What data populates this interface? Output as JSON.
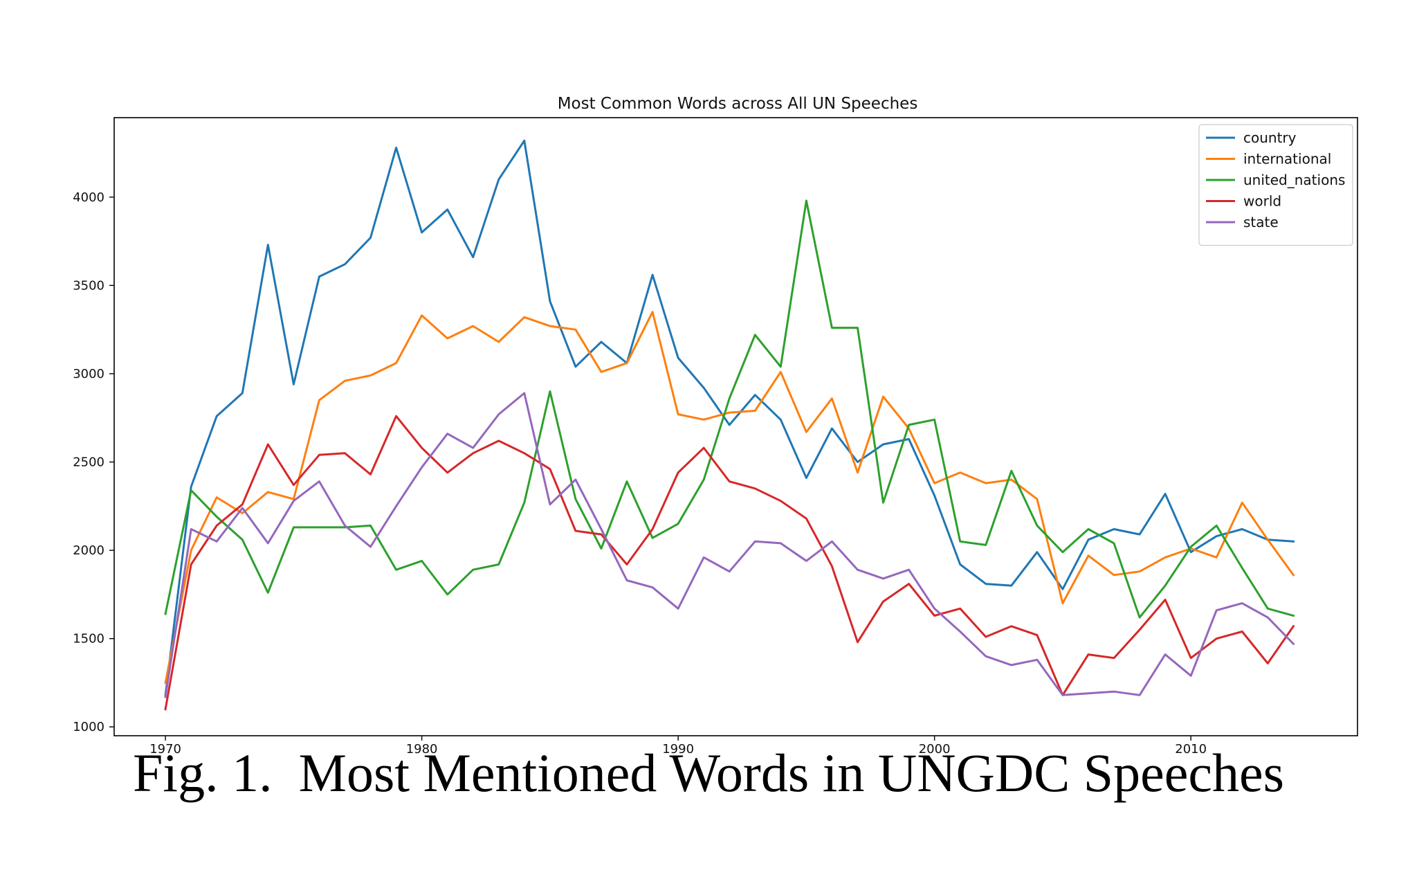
{
  "caption": {
    "prefix": "Fig. 1.",
    "text": "Most Mentioned Words in UNGDC Speeches"
  },
  "chart_data": {
    "type": "line",
    "title": "Most Common Words across All UN Speeches",
    "xlabel": "",
    "ylabel": "",
    "xlim": [
      1968,
      2016.5
    ],
    "ylim": [
      950,
      4450
    ],
    "xticks": [
      1970,
      1980,
      1990,
      2000,
      2010
    ],
    "yticks": [
      1000,
      1500,
      2000,
      2500,
      3000,
      3500,
      4000
    ],
    "grid": false,
    "legend_position": "top-right",
    "x": [
      1970,
      1971,
      1972,
      1973,
      1974,
      1975,
      1976,
      1977,
      1978,
      1979,
      1980,
      1981,
      1982,
      1983,
      1984,
      1985,
      1986,
      1987,
      1988,
      1989,
      1990,
      1991,
      1992,
      1993,
      1994,
      1995,
      1996,
      1997,
      1998,
      1999,
      2000,
      2001,
      2002,
      2003,
      2004,
      2005,
      2006,
      2007,
      2008,
      2009,
      2010,
      2011,
      2012,
      2013,
      2014
    ],
    "series": [
      {
        "name": "country",
        "color": "#1f77b4",
        "values": [
          1180,
          2360,
          2760,
          2890,
          3730,
          2940,
          3550,
          3620,
          3770,
          4280,
          3800,
          3930,
          3660,
          4100,
          4320,
          3410,
          3040,
          3180,
          3060,
          3560,
          3090,
          2920,
          2710,
          2880,
          2740,
          2410,
          2690,
          2500,
          2600,
          2630,
          2310,
          1920,
          1810,
          1800,
          1990,
          1780,
          2060,
          2120,
          2090,
          2320,
          1990,
          2080,
          2120,
          2060,
          2050
        ]
      },
      {
        "name": "international",
        "color": "#ff7f0e",
        "values": [
          1250,
          2000,
          2300,
          2210,
          2330,
          2290,
          2850,
          2960,
          2990,
          3060,
          3330,
          3200,
          3270,
          3180,
          3320,
          3270,
          3250,
          3010,
          3060,
          3350,
          2770,
          2740,
          2780,
          2790,
          3010,
          2670,
          2860,
          2440,
          2870,
          2690,
          2380,
          2440,
          2380,
          2400,
          2290,
          1700,
          1970,
          1860,
          1880,
          1960,
          2010,
          1960,
          2270,
          2060,
          1860
        ]
      },
      {
        "name": "united_nations",
        "color": "#2ca02c",
        "values": [
          1640,
          2340,
          2190,
          2060,
          1760,
          2130,
          2130,
          2130,
          2140,
          1890,
          1940,
          1750,
          1890,
          1920,
          2270,
          2900,
          2290,
          2010,
          2390,
          2070,
          2150,
          2400,
          2860,
          3220,
          3040,
          3980,
          3260,
          3260,
          2270,
          2710,
          2740,
          2050,
          2030,
          2450,
          2140,
          1990,
          2120,
          2040,
          1620,
          1800,
          2020,
          2140,
          1900,
          1670,
          1630
        ]
      },
      {
        "name": "world",
        "color": "#d62728",
        "values": [
          1100,
          1920,
          2140,
          2260,
          2600,
          2370,
          2540,
          2550,
          2430,
          2760,
          2580,
          2440,
          2550,
          2620,
          2550,
          2460,
          2110,
          2090,
          1920,
          2120,
          2440,
          2580,
          2390,
          2350,
          2280,
          2180,
          1910,
          1480,
          1710,
          1810,
          1630,
          1670,
          1510,
          1570,
          1520,
          1180,
          1410,
          1390,
          1550,
          1720,
          1390,
          1500,
          1540,
          1360,
          1570
        ]
      },
      {
        "name": "state",
        "color": "#9467bd",
        "values": [
          1170,
          2120,
          2050,
          2240,
          2040,
          2280,
          2390,
          2140,
          2020,
          2250,
          2470,
          2660,
          2580,
          2770,
          2890,
          2260,
          2400,
          2120,
          1830,
          1790,
          1670,
          1960,
          1880,
          2050,
          2040,
          1940,
          2050,
          1890,
          1840,
          1890,
          1670,
          1540,
          1400,
          1350,
          1380,
          1180,
          1190,
          1200,
          1180,
          1410,
          1290,
          1660,
          1700,
          1620,
          1470
        ]
      }
    ]
  }
}
